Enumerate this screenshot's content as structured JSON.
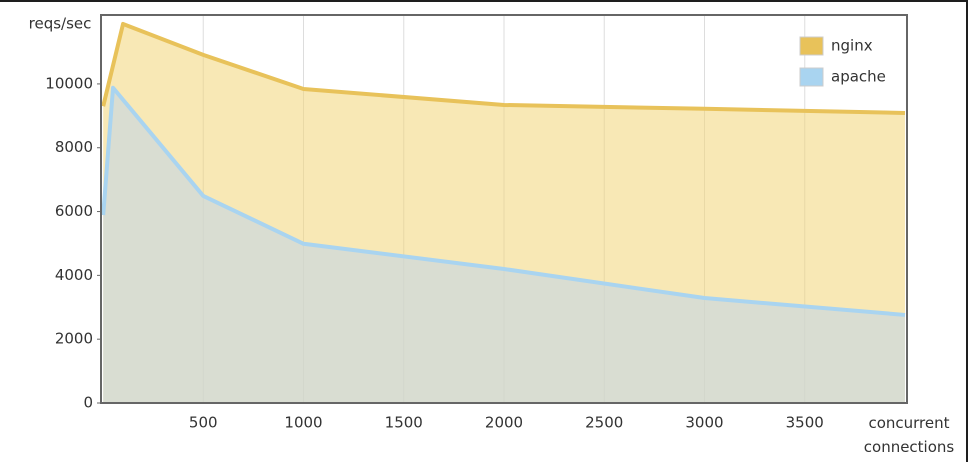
{
  "chart_data": {
    "type": "area",
    "ylabel": "reqs/sec",
    "xlabel": "concurrent connections",
    "series": [
      {
        "name": "nginx",
        "color": "#e8c25a",
        "x": [
          1,
          100,
          500,
          1000,
          2000,
          3000,
          4000
        ],
        "values": [
          9300,
          11880,
          10910,
          9840,
          9340,
          9220,
          9090
        ]
      },
      {
        "name": "apache",
        "color": "#a9d4f0",
        "x": [
          1,
          50,
          500,
          1000,
          2000,
          3000,
          4000
        ],
        "values": [
          5890,
          9880,
          6490,
          4990,
          4200,
          3290,
          2760
        ]
      }
    ],
    "xlim": [
      -10,
      4010
    ],
    "xticks": [
      500,
      1000,
      1500,
      2000,
      2500,
      3000,
      3500
    ],
    "ylim": [
      0,
      12160
    ],
    "yticks": [
      0,
      2000,
      4000,
      6000,
      8000,
      10000
    ],
    "grid": true,
    "legend": "top-right"
  }
}
